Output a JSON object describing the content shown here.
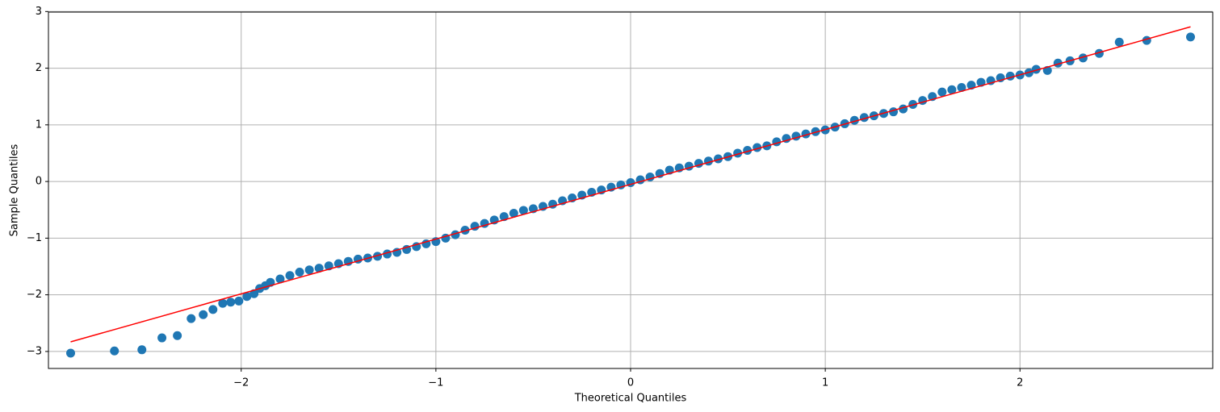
{
  "chart_data": {
    "type": "scatter",
    "xlabel": "Theoretical Quantiles",
    "ylabel": "Sample Quantiles",
    "xlim": [
      -2.99,
      2.99
    ],
    "ylim": [
      -3.3,
      2.99
    ],
    "xticks": [
      {
        "value": -2,
        "label": "−2"
      },
      {
        "value": -1,
        "label": "−1"
      },
      0,
      1,
      2
    ],
    "yticks": [
      {
        "value": -3,
        "label": "−3"
      },
      {
        "value": -2,
        "label": "−2"
      },
      {
        "value": -1,
        "label": "−1"
      },
      0,
      1,
      2,
      3
    ],
    "grid": true,
    "color": "#1f77b4",
    "x": [
      -2.876,
      -2.651,
      -2.51,
      -2.407,
      -2.328,
      -2.257,
      -2.195,
      -2.145,
      -2.095,
      -2.054,
      -2.012,
      -1.971,
      -1.934,
      -1.905,
      -1.876,
      -1.85,
      -1.8,
      -1.75,
      -1.7,
      -1.65,
      -1.6,
      -1.55,
      -1.5,
      -1.45,
      -1.4,
      -1.35,
      -1.3,
      -1.25,
      -1.2,
      -1.15,
      -1.1,
      -1.05,
      -1.0,
      -0.95,
      -0.9,
      -0.85,
      -0.8,
      -0.75,
      -0.7,
      -0.65,
      -0.6,
      -0.55,
      -0.5,
      -0.45,
      -0.4,
      -0.35,
      -0.3,
      -0.25,
      -0.2,
      -0.15,
      -0.1,
      -0.05,
      0,
      0.05,
      0.1,
      0.15,
      0.2,
      0.25,
      0.3,
      0.35,
      0.4,
      0.45,
      0.5,
      0.55,
      0.6,
      0.65,
      0.7,
      0.75,
      0.8,
      0.85,
      0.9,
      0.95,
      1.0,
      1.05,
      1.1,
      1.15,
      1.2,
      1.25,
      1.3,
      1.35,
      1.4,
      1.45,
      1.5,
      1.55,
      1.6,
      1.65,
      1.7,
      1.75,
      1.8,
      1.85,
      1.9,
      1.95,
      2.0,
      2.046,
      2.083,
      2.141,
      2.195,
      2.257,
      2.324,
      2.407,
      2.51,
      2.651,
      2.876
    ],
    "values": [
      -3.03,
      -2.99,
      -2.97,
      -2.76,
      -2.72,
      -2.42,
      -2.35,
      -2.26,
      -2.15,
      -2.13,
      -2.11,
      -2.03,
      -1.98,
      -1.89,
      -1.84,
      -1.78,
      -1.72,
      -1.66,
      -1.6,
      -1.56,
      -1.53,
      -1.49,
      -1.45,
      -1.41,
      -1.37,
      -1.35,
      -1.32,
      -1.28,
      -1.25,
      -1.2,
      -1.15,
      -1.1,
      -1.06,
      -1.0,
      -0.94,
      -0.86,
      -0.79,
      -0.74,
      -0.68,
      -0.62,
      -0.56,
      -0.51,
      -0.48,
      -0.44,
      -0.4,
      -0.34,
      -0.29,
      -0.24,
      -0.19,
      -0.15,
      -0.1,
      -0.06,
      -0.02,
      0.03,
      0.08,
      0.14,
      0.2,
      0.24,
      0.27,
      0.32,
      0.36,
      0.4,
      0.44,
      0.5,
      0.55,
      0.6,
      0.63,
      0.7,
      0.76,
      0.8,
      0.84,
      0.88,
      0.91,
      0.96,
      1.02,
      1.08,
      1.13,
      1.16,
      1.2,
      1.23,
      1.28,
      1.36,
      1.43,
      1.5,
      1.58,
      1.62,
      1.66,
      1.7,
      1.75,
      1.78,
      1.83,
      1.86,
      1.88,
      1.92,
      1.98,
      1.96,
      2.09,
      2.13,
      2.18,
      2.26,
      2.46,
      2.49,
      2.55
    ],
    "fit_line": {
      "x": [
        -2.876,
        2.876
      ],
      "values": [
        -2.83,
        2.73
      ],
      "color": "#ff0000"
    }
  }
}
